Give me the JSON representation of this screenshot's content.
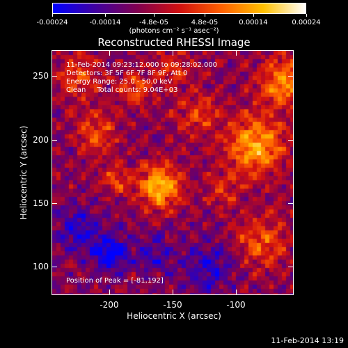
{
  "colorbar": {
    "ticks": [
      "-0.00024",
      "-0.00014",
      "-4.8e-05",
      "4.8e-05",
      "0.00014",
      "0.00024"
    ],
    "tick_values": [
      -0.00024,
      -0.00014,
      -4.8e-05,
      4.8e-05,
      0.00014,
      0.00024
    ],
    "range": [
      -0.00024,
      0.00024
    ],
    "units": "(photons cm⁻² s⁻¹ asec⁻²)",
    "colormap": [
      "#0000ff",
      "#4000a0",
      "#800050",
      "#d01010",
      "#ff6000",
      "#ffc000",
      "#ffffff"
    ]
  },
  "title": "Reconstructed RHESSI Image",
  "info": {
    "time_range": "11-Feb-2014 09:23:12.000 to 09:28:02.000",
    "detectors": "Detectors: 3F 5F 6F 7F 8F 9F, Att 0",
    "energy": "Energy Range: 25.0 - 50.0 keV",
    "method": "Clean     Total counts: 9.04E+03",
    "peak": "Position of Peak = [-81,192]"
  },
  "footer_date": "11-Feb-2014 13:19",
  "chart_data": {
    "type": "heatmap",
    "title": "Reconstructed RHESSI Image",
    "xlabel": "Heliocentric X (arcsec)",
    "ylabel": "Heliocentric Y (arcsec)",
    "xlim": [
      -245,
      -55
    ],
    "ylim": [
      78,
      270
    ],
    "xticks": [
      -200,
      -150,
      -100
    ],
    "yticks": [
      100,
      150,
      200,
      250
    ],
    "value_range": [
      -0.00024,
      0.00024
    ],
    "peak_position": [
      -81,
      192
    ],
    "sources": [
      {
        "x": -160,
        "y": 163,
        "sigma": 12,
        "amp": 1.0
      },
      {
        "x": -85,
        "y": 195,
        "sigma": 16,
        "amp": 0.9
      },
      {
        "x": -62,
        "y": 245,
        "sigma": 14,
        "amp": 0.8
      },
      {
        "x": -80,
        "y": 120,
        "sigma": 15,
        "amp": 0.55
      },
      {
        "x": -225,
        "y": 250,
        "sigma": 12,
        "amp": 0.5
      },
      {
        "x": -180,
        "y": 240,
        "sigma": 10,
        "amp": 0.5
      },
      {
        "x": -210,
        "y": 205,
        "sigma": 12,
        "amp": 0.5
      },
      {
        "x": -195,
        "y": 168,
        "sigma": 9,
        "amp": 0.4
      },
      {
        "x": -130,
        "y": 220,
        "sigma": 12,
        "amp": 0.45
      },
      {
        "x": -150,
        "y": 255,
        "sigma": 10,
        "amp": 0.4
      },
      {
        "x": -110,
        "y": 160,
        "sigma": 10,
        "amp": 0.35
      },
      {
        "x": -200,
        "y": 110,
        "sigma": 10,
        "amp": -0.7
      },
      {
        "x": -225,
        "y": 130,
        "sigma": 12,
        "amp": -0.5
      },
      {
        "x": -120,
        "y": 100,
        "sigma": 14,
        "amp": -0.45
      },
      {
        "x": -165,
        "y": 110,
        "sigma": 12,
        "amp": -0.35
      }
    ]
  }
}
